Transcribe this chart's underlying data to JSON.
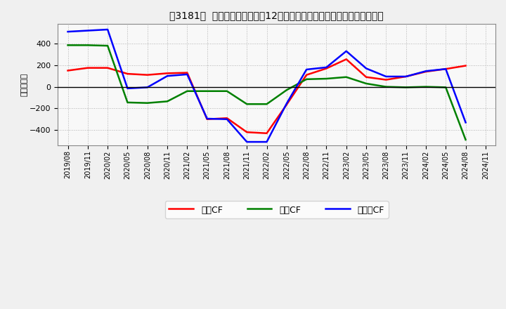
{
  "title": "　3181、 キャッシュフローの12か月移動合計の対前年同期増減額の推移",
  "title_prefix": "　3181、",
  "ylabel": "（百万円）",
  "background_color": "#f0f0f0",
  "plot_bg_color": "#f8f8f8",
  "grid_color": "#aaaaaa",
  "xlabels": [
    "2019/08",
    "2019/11",
    "2020/02",
    "2020/05",
    "2020/08",
    "2020/11",
    "2021/02",
    "2021/05",
    "2021/08",
    "2021/11",
    "2022/02",
    "2022/05",
    "2022/08",
    "2022/11",
    "2023/02",
    "2023/05",
    "2023/08",
    "2023/11",
    "2024/02",
    "2024/05",
    "2024/08",
    "2024/11"
  ],
  "operating_cf": [
    150,
    175,
    175,
    120,
    110,
    125,
    130,
    -300,
    -290,
    -420,
    -430,
    -165,
    110,
    170,
    255,
    90,
    65,
    95,
    140,
    165,
    195,
    null
  ],
  "investing_cf": [
    385,
    385,
    380,
    -145,
    -150,
    -135,
    -40,
    -40,
    -40,
    -160,
    -160,
    -30,
    70,
    75,
    90,
    30,
    0,
    -5,
    0,
    -5,
    -490,
    null
  ],
  "free_cf": [
    510,
    520,
    530,
    -15,
    -5,
    100,
    115,
    -295,
    -300,
    -510,
    -510,
    -155,
    160,
    180,
    330,
    170,
    95,
    95,
    145,
    165,
    -330,
    null
  ],
  "ylim": [
    -540,
    580
  ],
  "yticks": [
    -400,
    -200,
    0,
    200,
    400
  ],
  "line_colors": {
    "operating": "#ff0000",
    "investing": "#008000",
    "free": "#0000ff"
  },
  "legend_labels": {
    "operating": "営業CF",
    "investing": "投資CF",
    "free": "フリーCF"
  }
}
